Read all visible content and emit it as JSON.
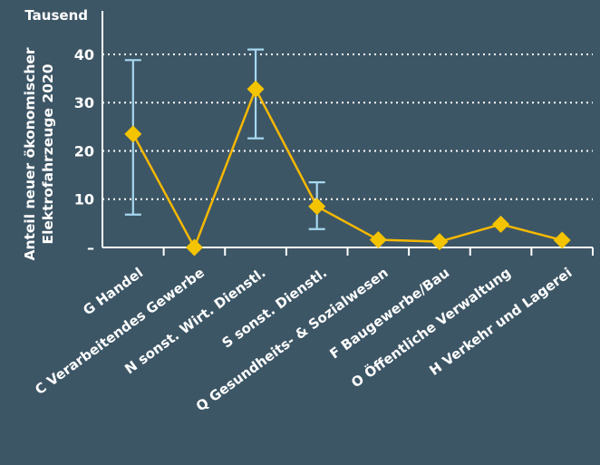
{
  "chart_data": {
    "type": "line",
    "unit_label": "Tausend",
    "ylabel_line1": "Anteil neuer ökonomischer",
    "ylabel_line2": "Elektrofahrzeuge 2020",
    "ytick_labels": [
      "–",
      "10",
      "20",
      "30",
      "40"
    ],
    "ytick_values": [
      0,
      10,
      20,
      30,
      40
    ],
    "ylim": [
      0,
      49
    ],
    "grid": true,
    "categories": [
      "G Handel",
      "C Verarbeitendes Gewerbe",
      "N sonst. Wirt. Dienstl.",
      "S sonst.  Dienstl.",
      "Q Gesundheits- & Sozialwesen",
      "F Baugewerbe/Bau",
      "O Öffentliche Verwaltung",
      "H Verkehr und Lagerei"
    ],
    "values": [
      23.5,
      0,
      32.8,
      8.5,
      1.6,
      1.2,
      4.8,
      1.5
    ],
    "error_low": [
      6.8,
      null,
      22.6,
      3.8,
      null,
      null,
      null,
      null
    ],
    "error_high": [
      38.8,
      null,
      41.0,
      13.5,
      null,
      null,
      null,
      null
    ],
    "line_color": "#f5b800",
    "marker_color": "#f5c400",
    "error_color": "#a6d8ef",
    "axis_color": "#ffffff"
  }
}
